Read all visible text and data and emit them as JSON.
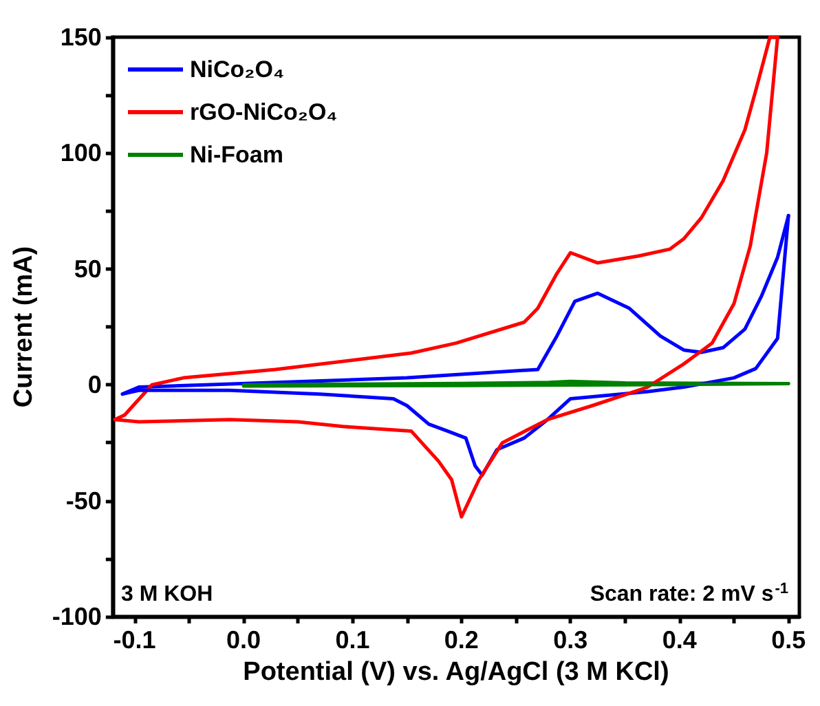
{
  "chart_data": {
    "type": "line",
    "xlabel": "Potential (V) vs. Ag/AgCl (3 M KCl)",
    "ylabel": "Current (mA)",
    "xlim": [
      -0.12,
      0.51
    ],
    "ylim": [
      -100,
      150
    ],
    "xticks": [
      -0.1,
      {
        "value": -0.05,
        "label": null
      },
      {
        "value": 0,
        "label": "0.0"
      },
      {
        "value": 0.05,
        "label": null
      },
      0.1,
      {
        "value": 0.15,
        "label": null
      },
      0.2,
      {
        "value": 0.25,
        "label": null
      },
      0.3,
      {
        "value": 0.35,
        "label": null
      },
      0.4,
      {
        "value": 0.45,
        "label": null
      },
      0.5
    ],
    "yticks": [
      -100,
      {
        "value": -75,
        "label": null
      },
      -50,
      {
        "value": -25,
        "label": null
      },
      0,
      {
        "value": 25,
        "label": null
      },
      50,
      {
        "value": 75,
        "label": null
      },
      100,
      {
        "value": 125,
        "label": null
      },
      150
    ],
    "grid": false,
    "legend": "top left",
    "marker": "none",
    "line_style": "solid",
    "annotations": [
      "3 M KOH",
      "Scan rate: 2 mV s$^{-1}$"
    ],
    "series": [
      {
        "name": "NiCo₂O₄",
        "color": "#0000ff",
        "x": [
          -0.111,
          -0.096,
          0.03,
          0.15,
          0.27,
          0.2875,
          0.304,
          0.325,
          0.354,
          0.3825,
          0.404,
          0.42,
          0.44,
          0.46,
          0.475,
          0.49,
          0.5
        ],
        "values": [
          -4,
          -1,
          1,
          3,
          6.6,
          21,
          36,
          39.5,
          33,
          21,
          15,
          14,
          16,
          24,
          38,
          55,
          73
        ]
      },
      {
        "name": "rGO-NiCo₂O₄",
        "color": "#ff0000",
        "x": [
          -0.118,
          -0.109,
          -0.084,
          -0.055,
          0.029,
          0.154,
          0.195,
          0.2575,
          0.27,
          0.2875,
          0.3,
          0.325,
          0.3625,
          0.391,
          0.404,
          0.42,
          0.44,
          0.46,
          0.47,
          0.483,
          0.49
        ],
        "values": [
          -15,
          -13,
          0,
          3,
          6.6,
          13.7,
          18,
          27,
          33,
          48,
          57,
          52.6,
          55.6,
          58.5,
          63,
          72,
          88,
          110,
          127,
          150,
          150
        ]
      },
      {
        "name": "Ni-Foam",
        "color": "#008000",
        "x": [
          0,
          0.1,
          0.2,
          0.28,
          0.3,
          0.35,
          0.5
        ],
        "values": [
          0,
          0.3,
          0.6,
          1,
          1.5,
          0.8,
          0.5
        ]
      },
      {
        "color": "#0000ff",
        "x": [
          -0.111,
          -0.096,
          -0.0125,
          0.07,
          0.1375,
          0.15,
          0.17,
          0.1875,
          0.204,
          0.2125,
          0.219,
          0.2325,
          0.2575,
          0.279,
          0.3,
          0.37,
          0.404,
          0.45,
          0.47,
          0.49,
          0.5
        ],
        "values": [
          -4,
          -2.4,
          -2.4,
          -4,
          -6,
          -9,
          -17,
          -20,
          -23,
          -35,
          -39,
          -28,
          -23,
          -15,
          -6,
          -3,
          -1,
          3,
          7,
          20,
          73
        ]
      },
      {
        "color": "#ff0000",
        "x": [
          -0.118,
          -0.096,
          -0.0125,
          0.05,
          0.091,
          0.154,
          0.179,
          0.191,
          0.2,
          0.216,
          0.2375,
          0.279,
          0.32,
          0.37,
          0.404,
          0.43,
          0.45,
          0.465,
          0.48,
          0.49
        ],
        "values": [
          -15,
          -16,
          -15,
          -16,
          -18,
          -20,
          -33,
          -41,
          -57,
          -41,
          -25,
          -15,
          -9,
          -1.2,
          9,
          18,
          35,
          60,
          100,
          150
        ]
      },
      {
        "color": "#008000",
        "x": [
          0,
          0.2,
          0.35,
          0.5
        ],
        "values": [
          -0.5,
          -0.3,
          0,
          0.5
        ]
      }
    ]
  }
}
